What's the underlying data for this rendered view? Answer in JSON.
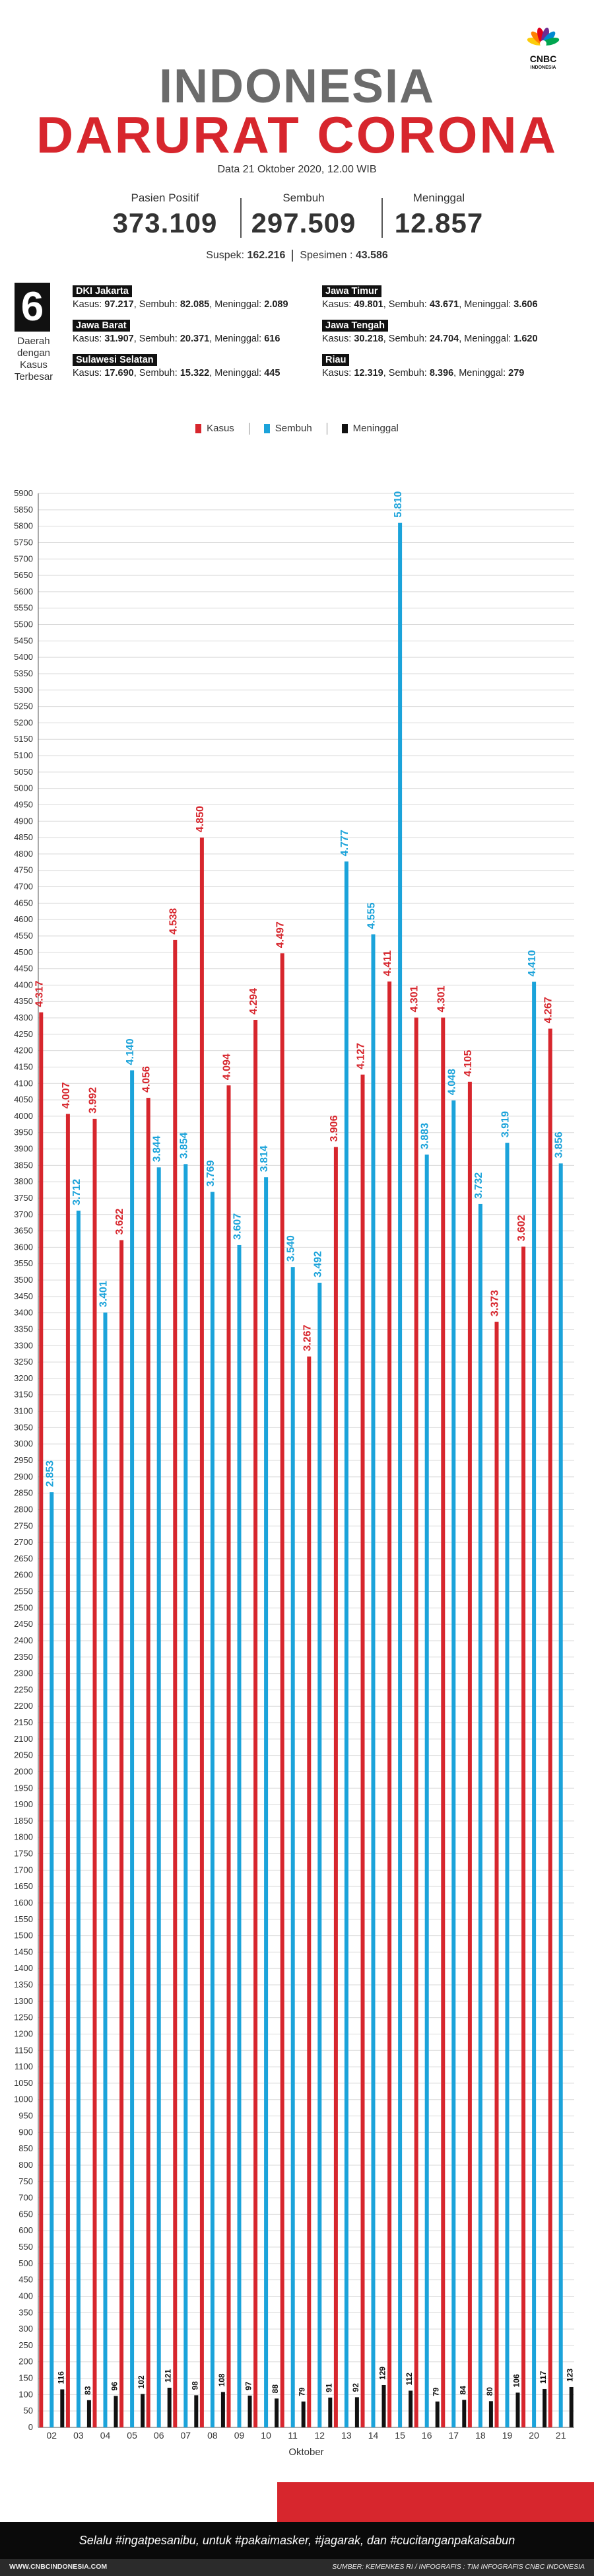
{
  "header": {
    "title_line1": "INDONESIA",
    "title_line2": "DARURAT CORONA",
    "subtitle": "Data 21 Oktober 2020, 12.00 WIB",
    "logo_text": "CNBC",
    "logo_subtext": "INDONESIA"
  },
  "stats": [
    {
      "label": "Pasien Positif",
      "value": "373.109"
    },
    {
      "label": "Sembuh",
      "value": "297.509"
    },
    {
      "label": "Meninggal",
      "value": "12.857"
    }
  ],
  "suspek": {
    "label1": "Suspek: ",
    "value1": "162.216",
    "label2": "Spesimen : ",
    "value2": "43.586"
  },
  "regions_summary": {
    "count": "6",
    "caption": "Daerah dengan Kasus Terbesar",
    "regions": [
      {
        "name": "DKI Jakarta",
        "kasus": "97.217",
        "sembuh": "82.085",
        "meninggal": "2.089"
      },
      {
        "name": "Jawa Timur",
        "kasus": "49.801",
        "sembuh": "43.671",
        "meninggal": "3.606"
      },
      {
        "name": "Jawa Barat",
        "kasus": "31.907",
        "sembuh": "20.371",
        "meninggal": "616"
      },
      {
        "name": "Jawa Tengah",
        "kasus": "30.218",
        "sembuh": "24.704",
        "meninggal": "1.620"
      },
      {
        "name": "Sulawesi Selatan",
        "kasus": "17.690",
        "sembuh": "15.322",
        "meninggal": "445"
      },
      {
        "name": "Riau",
        "kasus": "12.319",
        "sembuh": "8.396",
        "meninggal": "279"
      }
    ],
    "labels": {
      "kasus": "Kasus: ",
      "sembuh": ", Sembuh: ",
      "meninggal": ", Meninggal: "
    }
  },
  "legend": {
    "kasus": "Kasus",
    "sembuh": "Sembuh",
    "meninggal": "Meninggal"
  },
  "colors": {
    "kasus": "#d7262d",
    "sembuh": "#1ba3da",
    "meninggal": "#111111",
    "title_gray": "#6b6b6b"
  },
  "chart_data": {
    "type": "bar",
    "xlabel": "Oktober",
    "ylabel": "",
    "ylim": [
      0,
      5900
    ],
    "ytick_step": 50,
    "grid": true,
    "legend_position": "top",
    "categories": [
      "02",
      "03",
      "04",
      "05",
      "06",
      "07",
      "08",
      "09",
      "10",
      "11",
      "12",
      "13",
      "14",
      "15",
      "16",
      "17",
      "18",
      "19",
      "20",
      "21"
    ],
    "series": [
      {
        "name": "Kasus",
        "color": "#d7262d",
        "values": [
          4317,
          4007,
          3992,
          3622,
          4056,
          4538,
          4850,
          4094,
          4294,
          4497,
          3267,
          3906,
          4127,
          4411,
          4301,
          4301,
          4105,
          3373,
          3602,
          4267
        ],
        "labels": [
          "4.317",
          "4.007",
          "3.992",
          "3.622",
          "4.056",
          "4.538",
          "4.850",
          "4.094",
          "4.294",
          "4.497",
          "3.267",
          "3.906",
          "4.127",
          "4.411",
          "4.301",
          "4.301",
          "4.105",
          "3.373",
          "3.602",
          "4.267"
        ]
      },
      {
        "name": "Sembuh",
        "color": "#1ba3da",
        "values": [
          2853,
          3712,
          3401,
          4140,
          3844,
          3854,
          3769,
          3607,
          3814,
          3540,
          3492,
          4777,
          4555,
          5810,
          3883,
          4048,
          3732,
          3919,
          4410,
          3856
        ],
        "labels": [
          "2.853",
          "3.712",
          "3.401",
          "4.140",
          "3.844",
          "3.854",
          "3.769",
          "3.607",
          "3.814",
          "3.540",
          "3.492",
          "4.777",
          "4.555",
          "5.810",
          "3.883",
          "4.048",
          "3.732",
          "3.919",
          "4.410",
          "3.856"
        ]
      },
      {
        "name": "Meninggal",
        "color": "#111111",
        "values": [
          116,
          83,
          96,
          102,
          121,
          98,
          108,
          97,
          88,
          79,
          91,
          92,
          129,
          112,
          79,
          84,
          80,
          106,
          117,
          123
        ],
        "labels": [
          "116",
          "83",
          "96",
          "102",
          "121",
          "98",
          "108",
          "97",
          "88",
          "79",
          "91",
          "92",
          "129",
          "112",
          "79",
          "84",
          "80",
          "106",
          "117",
          "123"
        ]
      }
    ]
  },
  "footer": {
    "slogan": "Selalu #ingatpesanibu, untuk #pakaimasker, #jagarak, dan #cucitanganpakaisabun",
    "website": "WWW.CNBCINDONESIA.COM",
    "source": "SUMBER: KEMENKES RI / INFOGRAFIS : TIM INFOGRAFIS CNBC INDONESIA"
  }
}
